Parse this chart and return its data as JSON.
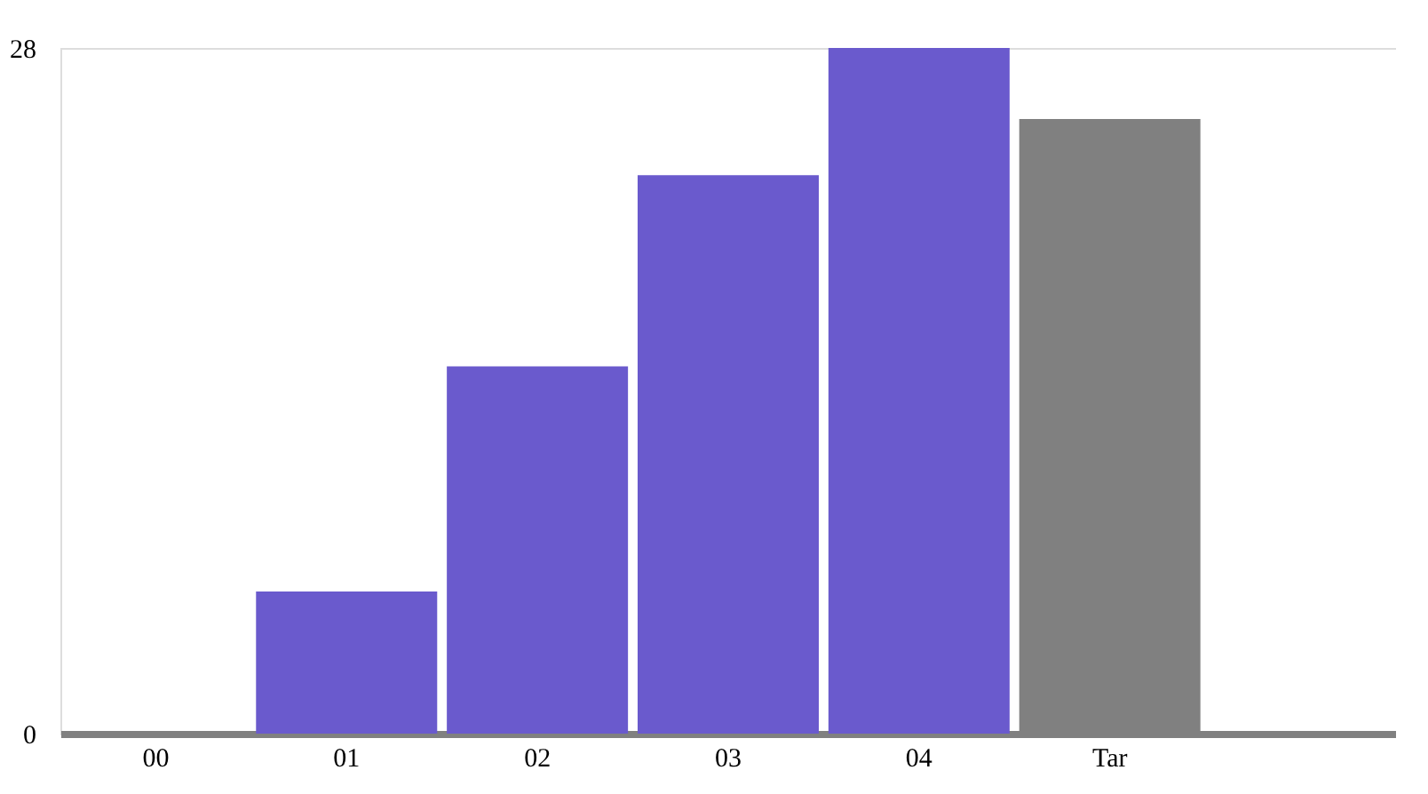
{
  "chart_data": {
    "type": "bar",
    "categories": [
      "00",
      "01",
      "02",
      "03",
      "04",
      "Tar",
      null
    ],
    "values": [
      0,
      5.8,
      15.0,
      22.8,
      28,
      25.1,
      null
    ],
    "colors": [
      "#6a5acd",
      "#6a5acd",
      "#6a5acd",
      "#6a5acd",
      "#6a5acd",
      "#808080",
      "#6a5acd"
    ],
    "ylim": [
      0,
      28
    ],
    "yticks": [
      0,
      28
    ],
    "grid": false
  }
}
